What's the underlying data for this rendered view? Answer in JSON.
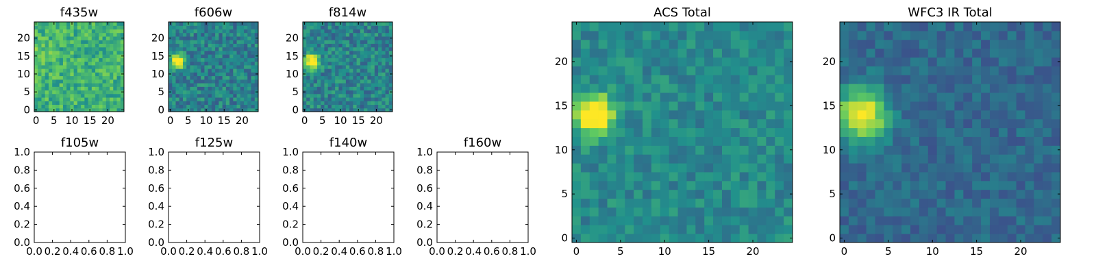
{
  "colormap": "viridis",
  "colormap_stops": [
    "#440154",
    "#3b528b",
    "#21918c",
    "#5ec962",
    "#fde725"
  ],
  "frame_color": "#000000",
  "chart_data": [
    {
      "id": "f435w",
      "type": "heatmap",
      "title": "f435w",
      "size": 25,
      "xticks": [
        "0",
        "5",
        "10",
        "15",
        "20"
      ],
      "yticks": [
        "0",
        "5",
        "10",
        "15",
        "20"
      ],
      "xlim": [
        -0.5,
        24.5
      ],
      "ylim": [
        -0.5,
        24.5
      ],
      "base": 0.64,
      "noise": 0.16,
      "seed": 11,
      "source": {
        "x": 1,
        "y": 14,
        "r": 2.6,
        "amp": 0.12
      }
    },
    {
      "id": "f606w",
      "type": "heatmap",
      "title": "f606w",
      "size": 25,
      "xticks": [
        "0",
        "5",
        "10",
        "15",
        "20"
      ],
      "yticks": [
        "0",
        "5",
        "10",
        "15",
        "20"
      ],
      "xlim": [
        -0.5,
        24.5
      ],
      "ylim": [
        -0.5,
        24.5
      ],
      "base": 0.44,
      "noise": 0.16,
      "seed": 23,
      "source": {
        "x": 2,
        "y": 13.5,
        "r": 1.3,
        "amp": 0.85
      }
    },
    {
      "id": "f814w",
      "type": "heatmap",
      "title": "f814w",
      "size": 25,
      "xticks": [
        "0",
        "5",
        "10",
        "15",
        "20"
      ],
      "yticks": [
        "0",
        "5",
        "10",
        "15",
        "20"
      ],
      "xlim": [
        -0.5,
        24.5
      ],
      "ylim": [
        -0.5,
        24.5
      ],
      "base": 0.45,
      "noise": 0.16,
      "seed": 37,
      "source": {
        "x": 2,
        "y": 13.5,
        "r": 1.3,
        "amp": 0.85
      }
    },
    {
      "id": "f105w",
      "type": "empty",
      "title": "f105w",
      "xticks": [
        "0.0",
        "0.2",
        "0.4",
        "0.6",
        "0.8",
        "1.0"
      ],
      "yticks": [
        "0.0",
        "0.2",
        "0.4",
        "0.6",
        "0.8",
        "1.0"
      ],
      "xlim": [
        0,
        1
      ],
      "ylim": [
        0,
        1
      ]
    },
    {
      "id": "f125w",
      "type": "empty",
      "title": "f125w",
      "xticks": [
        "0.0",
        "0.2",
        "0.4",
        "0.6",
        "0.8",
        "1.0"
      ],
      "yticks": [
        "0.0",
        "0.2",
        "0.4",
        "0.6",
        "0.8",
        "1.0"
      ],
      "xlim": [
        0,
        1
      ],
      "ylim": [
        0,
        1
      ]
    },
    {
      "id": "f140w",
      "type": "empty",
      "title": "f140w",
      "xticks": [
        "0.0",
        "0.2",
        "0.4",
        "0.6",
        "0.8",
        "1.0"
      ],
      "yticks": [
        "0.0",
        "0.2",
        "0.4",
        "0.6",
        "0.8",
        "1.0"
      ],
      "xlim": [
        0,
        1
      ],
      "ylim": [
        0,
        1
      ]
    },
    {
      "id": "f160w",
      "type": "empty",
      "title": "f160w",
      "xticks": [
        "0.0",
        "0.2",
        "0.4",
        "0.6",
        "0.8",
        "1.0"
      ],
      "yticks": [
        "0.0",
        "0.2",
        "0.4",
        "0.6",
        "0.8",
        "1.0"
      ],
      "xlim": [
        0,
        1
      ],
      "ylim": [
        0,
        1
      ]
    },
    {
      "id": "acs-total",
      "type": "heatmap",
      "title": "ACS Total",
      "size": 25,
      "xticks": [
        "0",
        "5",
        "10",
        "15",
        "20"
      ],
      "yticks": [
        "0",
        "5",
        "10",
        "15",
        "20"
      ],
      "xlim": [
        -0.5,
        24.5
      ],
      "ylim": [
        -0.5,
        24.5
      ],
      "base": 0.47,
      "noise": 0.11,
      "seed": 51,
      "source": {
        "x": 2,
        "y": 14,
        "r": 1.6,
        "amp": 0.75
      }
    },
    {
      "id": "wfc3-ir-total",
      "type": "heatmap",
      "title": "WFC3 IR Total",
      "size": 25,
      "xticks": [
        "0",
        "5",
        "10",
        "15",
        "20"
      ],
      "yticks": [
        "0",
        "5",
        "10",
        "15",
        "20"
      ],
      "xlim": [
        -0.5,
        24.5
      ],
      "ylim": [
        -0.5,
        24.5
      ],
      "base": 0.34,
      "noise": 0.09,
      "seed": 67,
      "source": {
        "x": 2,
        "y": 14,
        "r": 2.0,
        "amp": 0.75
      }
    }
  ]
}
